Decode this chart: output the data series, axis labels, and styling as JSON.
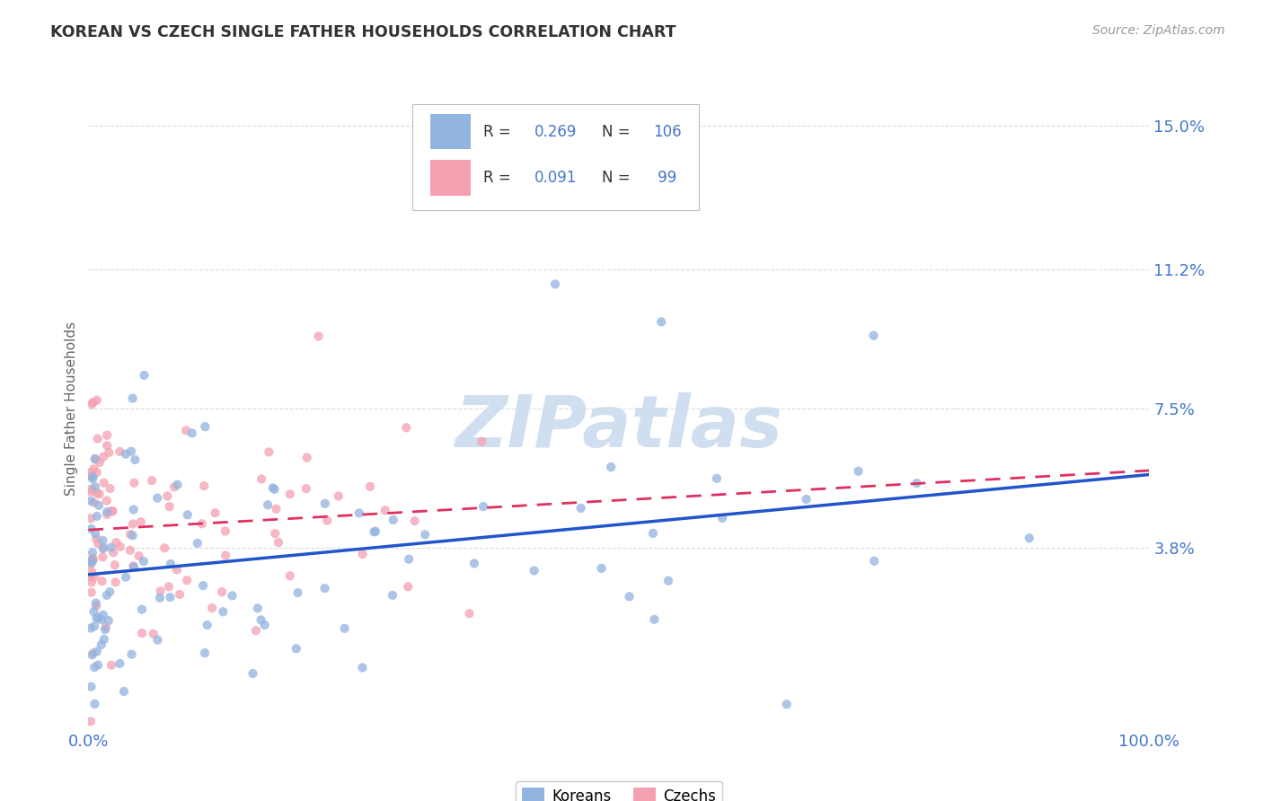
{
  "title": "KOREAN VS CZECH SINGLE FATHER HOUSEHOLDS CORRELATION CHART",
  "source": "Source: ZipAtlas.com",
  "ylabel": "Single Father Households",
  "xlim": [
    0.0,
    1.0
  ],
  "ylim": [
    -0.01,
    0.16
  ],
  "ytick_vals": [
    0.038,
    0.075,
    0.112,
    0.15
  ],
  "ytick_labels": [
    "3.8%",
    "7.5%",
    "11.2%",
    "15.0%"
  ],
  "xtick_vals": [
    0.0,
    1.0
  ],
  "xtick_labels": [
    "0.0%",
    "100.0%"
  ],
  "legend_korean_label": "Koreans",
  "legend_czech_label": "Czechs",
  "legend_R_korean": "0.269",
  "legend_N_korean": "106",
  "legend_R_czech": "0.091",
  "legend_N_czech": " 99",
  "korean_color": "#92b4e0",
  "czech_color": "#f4a0b0",
  "korean_line_color": "#2255cc",
  "czech_line_color": "#e03060",
  "title_color": "#333333",
  "source_color": "#999999",
  "axis_tick_color": "#4477cc",
  "watermark_text": "ZIPatlas",
  "watermark_color": "#d0dff0",
  "grid_color": "#cccccc",
  "korean_R": 0.269,
  "czech_R": 0.091,
  "korean_N": 106,
  "czech_N": 99
}
